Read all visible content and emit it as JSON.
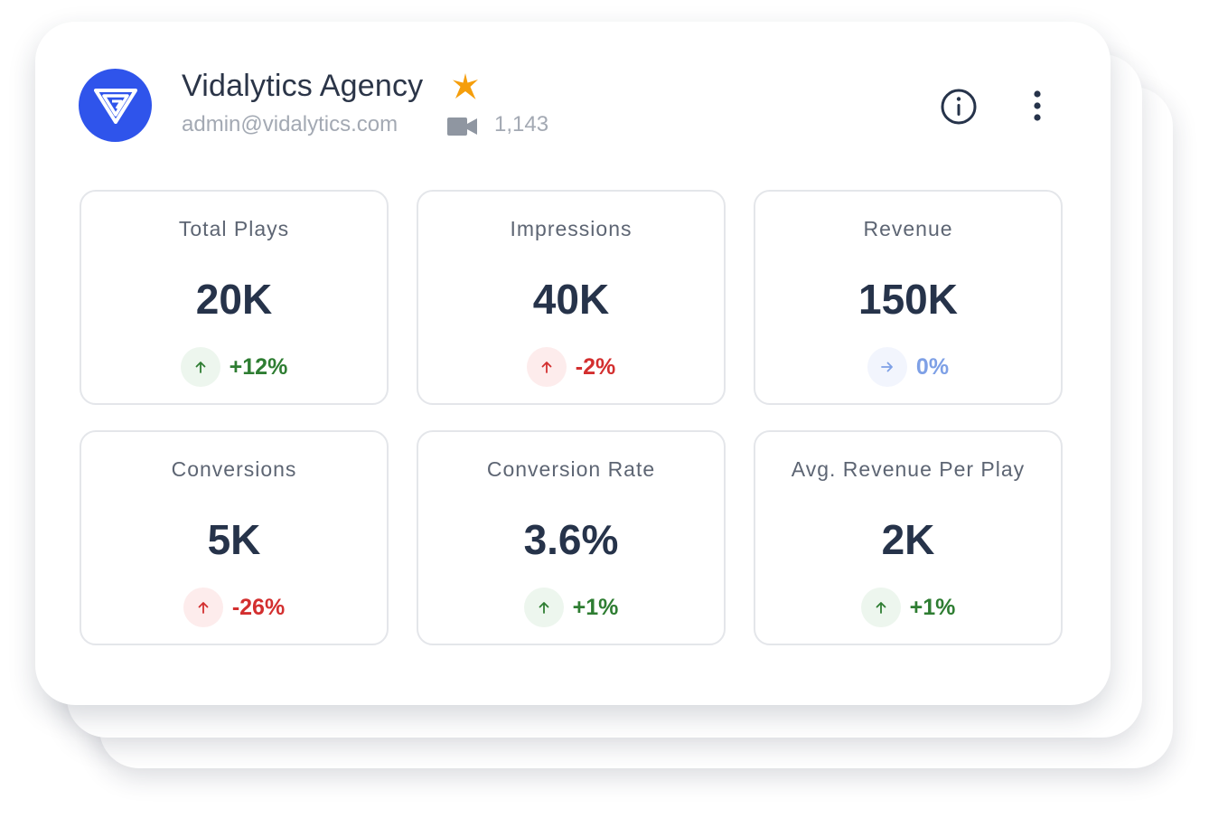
{
  "account": {
    "name": "Vidalytics Agency",
    "email": "admin@vidalytics.com",
    "video_count": "1,143",
    "logo_icon": "vidalytics-logo-icon",
    "star_icon": "star-icon",
    "brand_color": "#2f54eb",
    "star_color": "#f59e0b"
  },
  "actions": {
    "info_icon": "info-icon",
    "more_icon": "more-vertical-icon"
  },
  "metrics": [
    {
      "label": "Total Plays",
      "value": "20K",
      "change": "+12%",
      "trend": "up",
      "tone": "positive"
    },
    {
      "label": "Impressions",
      "value": "40K",
      "change": "-2%",
      "trend": "up",
      "tone": "negative"
    },
    {
      "label": "Revenue",
      "value": "150K",
      "change": "0%",
      "trend": "flat",
      "tone": "neutral"
    },
    {
      "label": "Conversions",
      "value": "5K",
      "change": "-26%",
      "trend": "up",
      "tone": "negative"
    },
    {
      "label": "Conversion Rate",
      "value": "3.6%",
      "change": "+1%",
      "trend": "up",
      "tone": "positive"
    },
    {
      "label": "Avg. Revenue Per Play",
      "value": "2K",
      "change": "+1%",
      "trend": "up",
      "tone": "positive"
    }
  ],
  "colors": {
    "positive": "#2e7d32",
    "negative": "#d32f2f",
    "neutral": "#7ea0e6"
  }
}
